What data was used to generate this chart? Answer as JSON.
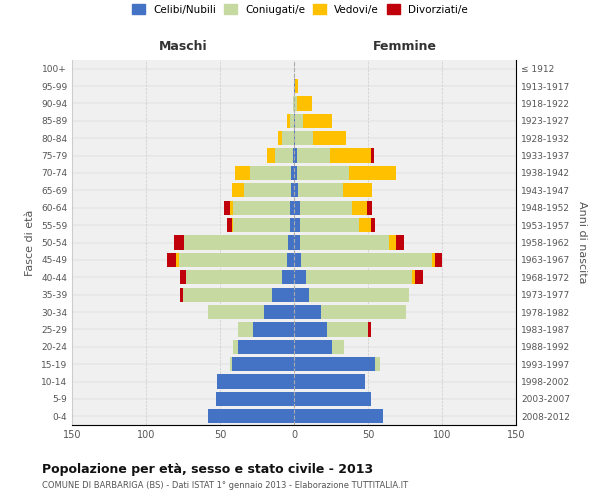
{
  "age_groups": [
    "0-4",
    "5-9",
    "10-14",
    "15-19",
    "20-24",
    "25-29",
    "30-34",
    "35-39",
    "40-44",
    "45-49",
    "50-54",
    "55-59",
    "60-64",
    "65-69",
    "70-74",
    "75-79",
    "80-84",
    "85-89",
    "90-94",
    "95-99",
    "100+"
  ],
  "birth_years": [
    "2008-2012",
    "2003-2007",
    "1998-2002",
    "1993-1997",
    "1988-1992",
    "1983-1987",
    "1978-1982",
    "1973-1977",
    "1968-1972",
    "1963-1967",
    "1958-1962",
    "1953-1957",
    "1948-1952",
    "1943-1947",
    "1938-1942",
    "1933-1937",
    "1928-1932",
    "1923-1927",
    "1918-1922",
    "1913-1917",
    "≤ 1912"
  ],
  "male": {
    "celibe": [
      58,
      53,
      52,
      42,
      38,
      28,
      20,
      15,
      8,
      5,
      4,
      3,
      3,
      2,
      2,
      1,
      0,
      0,
      0,
      0,
      0
    ],
    "coniugato": [
      0,
      0,
      0,
      1,
      3,
      10,
      38,
      60,
      65,
      73,
      70,
      38,
      38,
      32,
      28,
      12,
      8,
      3,
      1,
      0,
      0
    ],
    "vedovo": [
      0,
      0,
      0,
      0,
      0,
      0,
      0,
      0,
      0,
      2,
      0,
      1,
      2,
      8,
      10,
      5,
      3,
      2,
      0,
      0,
      0
    ],
    "divorziato": [
      0,
      0,
      0,
      0,
      0,
      0,
      0,
      2,
      4,
      6,
      7,
      3,
      4,
      0,
      0,
      0,
      0,
      0,
      0,
      0,
      0
    ]
  },
  "female": {
    "nubile": [
      60,
      52,
      48,
      55,
      26,
      22,
      18,
      10,
      8,
      5,
      4,
      4,
      4,
      3,
      2,
      2,
      1,
      1,
      0,
      1,
      0
    ],
    "coniugata": [
      0,
      0,
      0,
      3,
      8,
      28,
      58,
      68,
      72,
      88,
      60,
      40,
      35,
      30,
      35,
      22,
      12,
      5,
      2,
      0,
      0
    ],
    "vedova": [
      0,
      0,
      0,
      0,
      0,
      0,
      0,
      0,
      2,
      2,
      5,
      8,
      10,
      20,
      32,
      28,
      22,
      20,
      10,
      2,
      0
    ],
    "divorziata": [
      0,
      0,
      0,
      0,
      0,
      2,
      0,
      0,
      5,
      5,
      5,
      3,
      4,
      0,
      0,
      2,
      0,
      0,
      0,
      0,
      0
    ]
  },
  "colors": {
    "celibe": "#4472c4",
    "coniugato": "#c5d9a0",
    "vedovo": "#ffc000",
    "divorziato": "#c0000a"
  },
  "legend_labels": [
    "Celibi/Nubili",
    "Coniugati/e",
    "Vedovi/e",
    "Divorziati/e"
  ],
  "title": "Popolazione per età, sesso e stato civile - 2013",
  "subtitle": "COMUNE DI BARBARIGA (BS) - Dati ISTAT 1° gennaio 2013 - Elaborazione TUTTITALIA.IT",
  "xlabel_left": "Maschi",
  "xlabel_right": "Femmine",
  "ylabel_left": "Fasce di età",
  "ylabel_right": "Anni di nascita",
  "xlim": 150,
  "bg_color": "#ffffff",
  "plot_bg_color": "#f0f0f0"
}
